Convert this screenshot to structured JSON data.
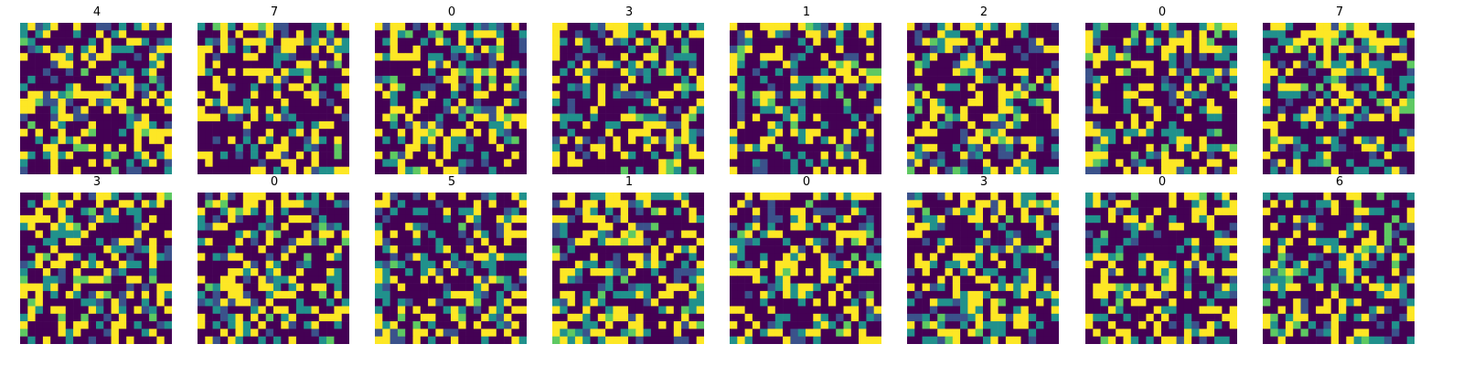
{
  "figure": {
    "colormap": "viridis",
    "palette": [
      "#440154",
      "#3b528b",
      "#21918c",
      "#5ec962",
      "#fde725"
    ]
  },
  "chart_data": [
    {
      "type": "heatmap",
      "title": "4",
      "grid": "off",
      "axes": "off"
    },
    {
      "type": "heatmap",
      "title": "7",
      "grid": "off",
      "axes": "off"
    },
    {
      "type": "heatmap",
      "title": "0",
      "grid": "off",
      "axes": "off"
    },
    {
      "type": "heatmap",
      "title": "3",
      "grid": "off",
      "axes": "off"
    },
    {
      "type": "heatmap",
      "title": "1",
      "grid": "off",
      "axes": "off"
    },
    {
      "type": "heatmap",
      "title": "2",
      "grid": "off",
      "axes": "off"
    },
    {
      "type": "heatmap",
      "title": "0",
      "grid": "off",
      "axes": "off"
    },
    {
      "type": "heatmap",
      "title": "7",
      "grid": "off",
      "axes": "off"
    },
    {
      "type": "heatmap",
      "title": "3",
      "grid": "off",
      "axes": "off"
    },
    {
      "type": "heatmap",
      "title": "0",
      "grid": "off",
      "axes": "off"
    },
    {
      "type": "heatmap",
      "title": "5",
      "grid": "off",
      "axes": "off"
    },
    {
      "type": "heatmap",
      "title": "1",
      "grid": "off",
      "axes": "off"
    },
    {
      "type": "heatmap",
      "title": "0",
      "grid": "off",
      "axes": "off"
    },
    {
      "type": "heatmap",
      "title": "3",
      "grid": "off",
      "axes": "off"
    },
    {
      "type": "heatmap",
      "title": "0",
      "grid": "off",
      "axes": "off"
    },
    {
      "type": "heatmap",
      "title": "6",
      "grid": "off",
      "axes": "off"
    }
  ]
}
